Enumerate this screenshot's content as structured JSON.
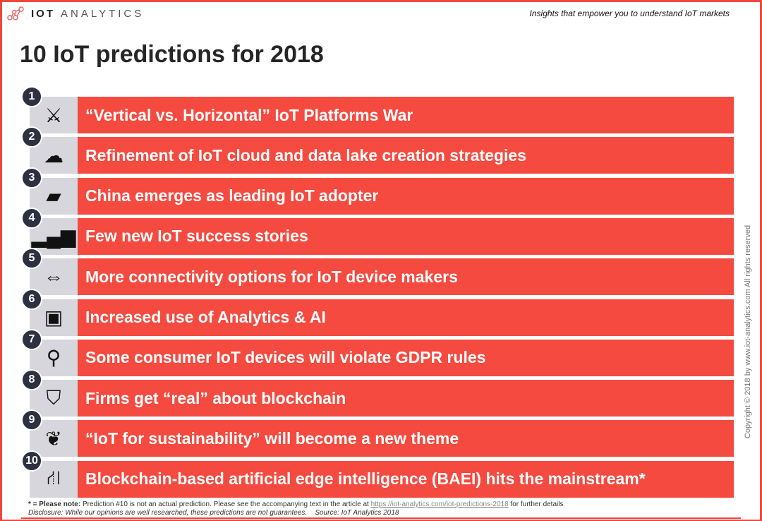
{
  "header": {
    "logo_bold": "IOT",
    "logo_light": "ANALYTICS",
    "tagline": "Insights that empower you to understand IoT markets"
  },
  "title": "10 IoT predictions for 2018",
  "colors": {
    "accent": "#f44a3f",
    "icon_bg": "#d6d6dc",
    "badge": "#2c3040"
  },
  "predictions": [
    {
      "num": "1",
      "text": "“Vertical vs. Horizontal” IoT Platforms War",
      "icon": "crossed-swords-icon",
      "glyph": "⚔"
    },
    {
      "num": "2",
      "text": "Refinement of IoT cloud and data lake creation strategies",
      "icon": "cloud-icon",
      "glyph": "☁"
    },
    {
      "num": "3",
      "text": "China emerges as leading IoT adopter",
      "icon": "china-map-icon",
      "glyph": "▰"
    },
    {
      "num": "4",
      "text": "Few new IoT success stories",
      "icon": "bar-chart-question-icon",
      "glyph": "▂▄▆"
    },
    {
      "num": "5",
      "text": "More connectivity options for IoT device makers",
      "icon": "person-arrows-icon",
      "glyph": "⇔"
    },
    {
      "num": "6",
      "text": "Increased use of Analytics & AI",
      "icon": "brain-chip-icon",
      "glyph": "▣"
    },
    {
      "num": "7",
      "text": "Some consumer IoT devices will violate GDPR rules",
      "icon": "magnifier-icon",
      "glyph": "⚲"
    },
    {
      "num": "8",
      "text": "Firms get “real” about blockchain",
      "icon": "shield-check-icon",
      "glyph": "⛉"
    },
    {
      "num": "9",
      "text": "“IoT for sustainability” will become a new theme",
      "icon": "hand-plant-icon",
      "glyph": "❦"
    },
    {
      "num": "10",
      "text": "Blockchain-based artificial edge intelligence (BAEI) hits the mainstream*",
      "icon": "road-icon",
      "glyph": "⛙"
    }
  ],
  "copyright": "Copyright © 2018 by www.iot-analytics.com All rights reserved",
  "footer": {
    "note_label": "* = Please note:",
    "note_text": " Prediction #10 is not an actual prediction. Please see the accompanying text in the article at ",
    "link": "https://iot-analytics.com/iot-predictions-2018",
    "note_end": " for further details",
    "disclosure": "Disclosure: While our opinions are well researched, these predictions are not guarantees.    Source: IoT Analytics 2018"
  }
}
